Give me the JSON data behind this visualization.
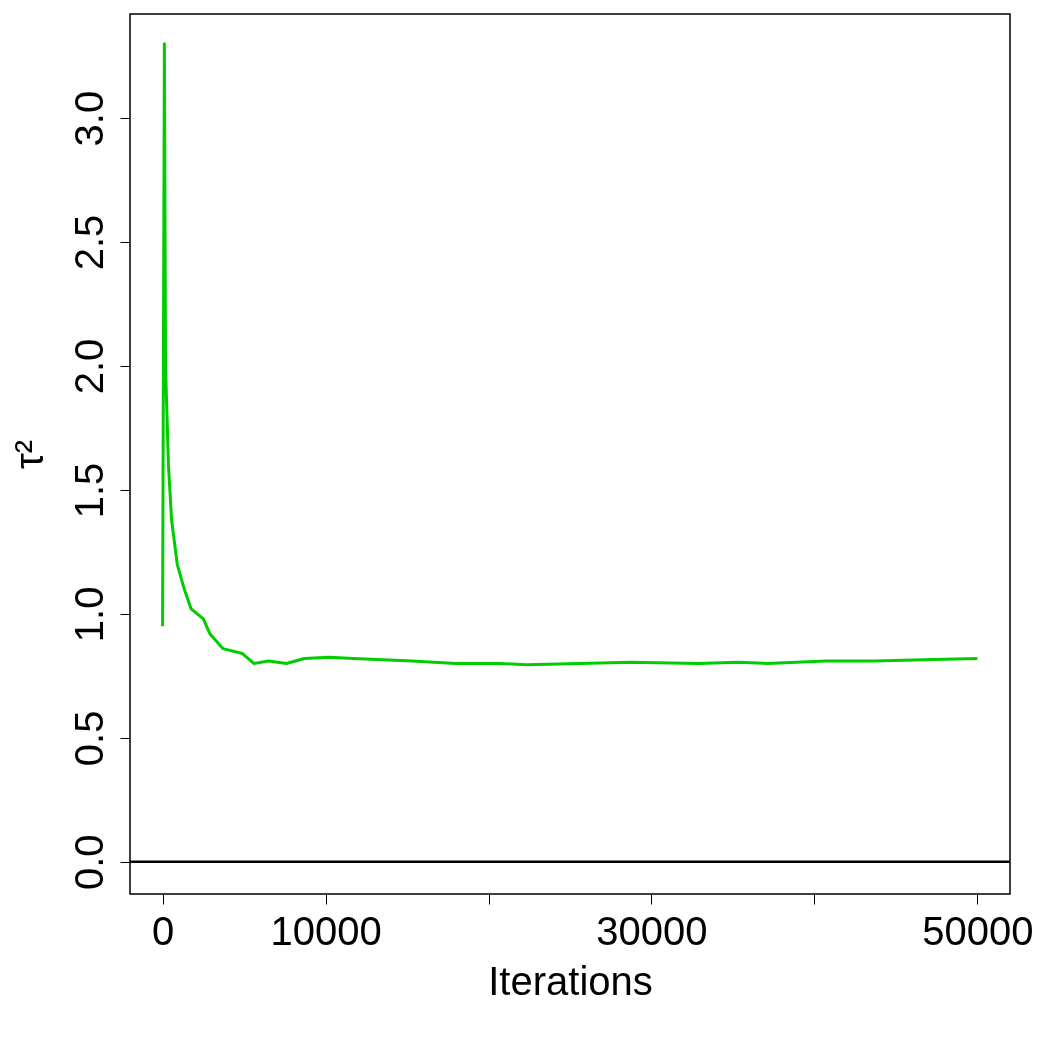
{
  "chart_data": {
    "type": "line",
    "xlabel": "Iterations",
    "ylabel": "τ²",
    "xlim": [
      -2000,
      52000
    ],
    "ylim": [
      -0.13,
      3.42
    ],
    "xticks": [
      0,
      10000,
      {
        "value": 20000,
        "label": null
      },
      30000,
      {
        "value": 40000,
        "label": null
      },
      50000
    ],
    "yticks": [
      {
        "value": 0,
        "label": "0.0"
      },
      {
        "value": 0.5,
        "label": "0.5"
      },
      {
        "value": 1,
        "label": "1.0"
      },
      {
        "value": 1.5,
        "label": "1.5"
      },
      {
        "value": 2,
        "label": "2.0"
      },
      {
        "value": 2.5,
        "label": "2.5"
      },
      {
        "value": 3,
        "label": "3.0"
      }
    ],
    "grid": false,
    "marker": "none",
    "line_style": "solid",
    "ref_lines": [
      {
        "axis": "y",
        "value": 0,
        "color": "#000000",
        "line_style": "solid"
      }
    ],
    "series": [
      {
        "color": "#00cc00",
        "x": [
          0,
          110,
          180,
          360,
          550,
          900,
          1330,
          1750,
          2500,
          2900,
          3700,
          4900,
          5600,
          6500,
          7600,
          8700,
          10200,
          11700,
          13500,
          15300,
          18000,
          20700,
          22300,
          25600,
          28700,
          32900,
          35300,
          37100,
          40700,
          43700,
          46700,
          50000
        ],
        "values": [
          0.95,
          3.3,
          2.0,
          1.6,
          1.38,
          1.2,
          1.1,
          1.02,
          0.98,
          0.92,
          0.86,
          0.84,
          0.8,
          0.81,
          0.8,
          0.82,
          0.825,
          0.82,
          0.815,
          0.81,
          0.8,
          0.8,
          0.795,
          0.8,
          0.805,
          0.8,
          0.805,
          0.8,
          0.81,
          0.81,
          0.815,
          0.82
        ]
      }
    ]
  }
}
